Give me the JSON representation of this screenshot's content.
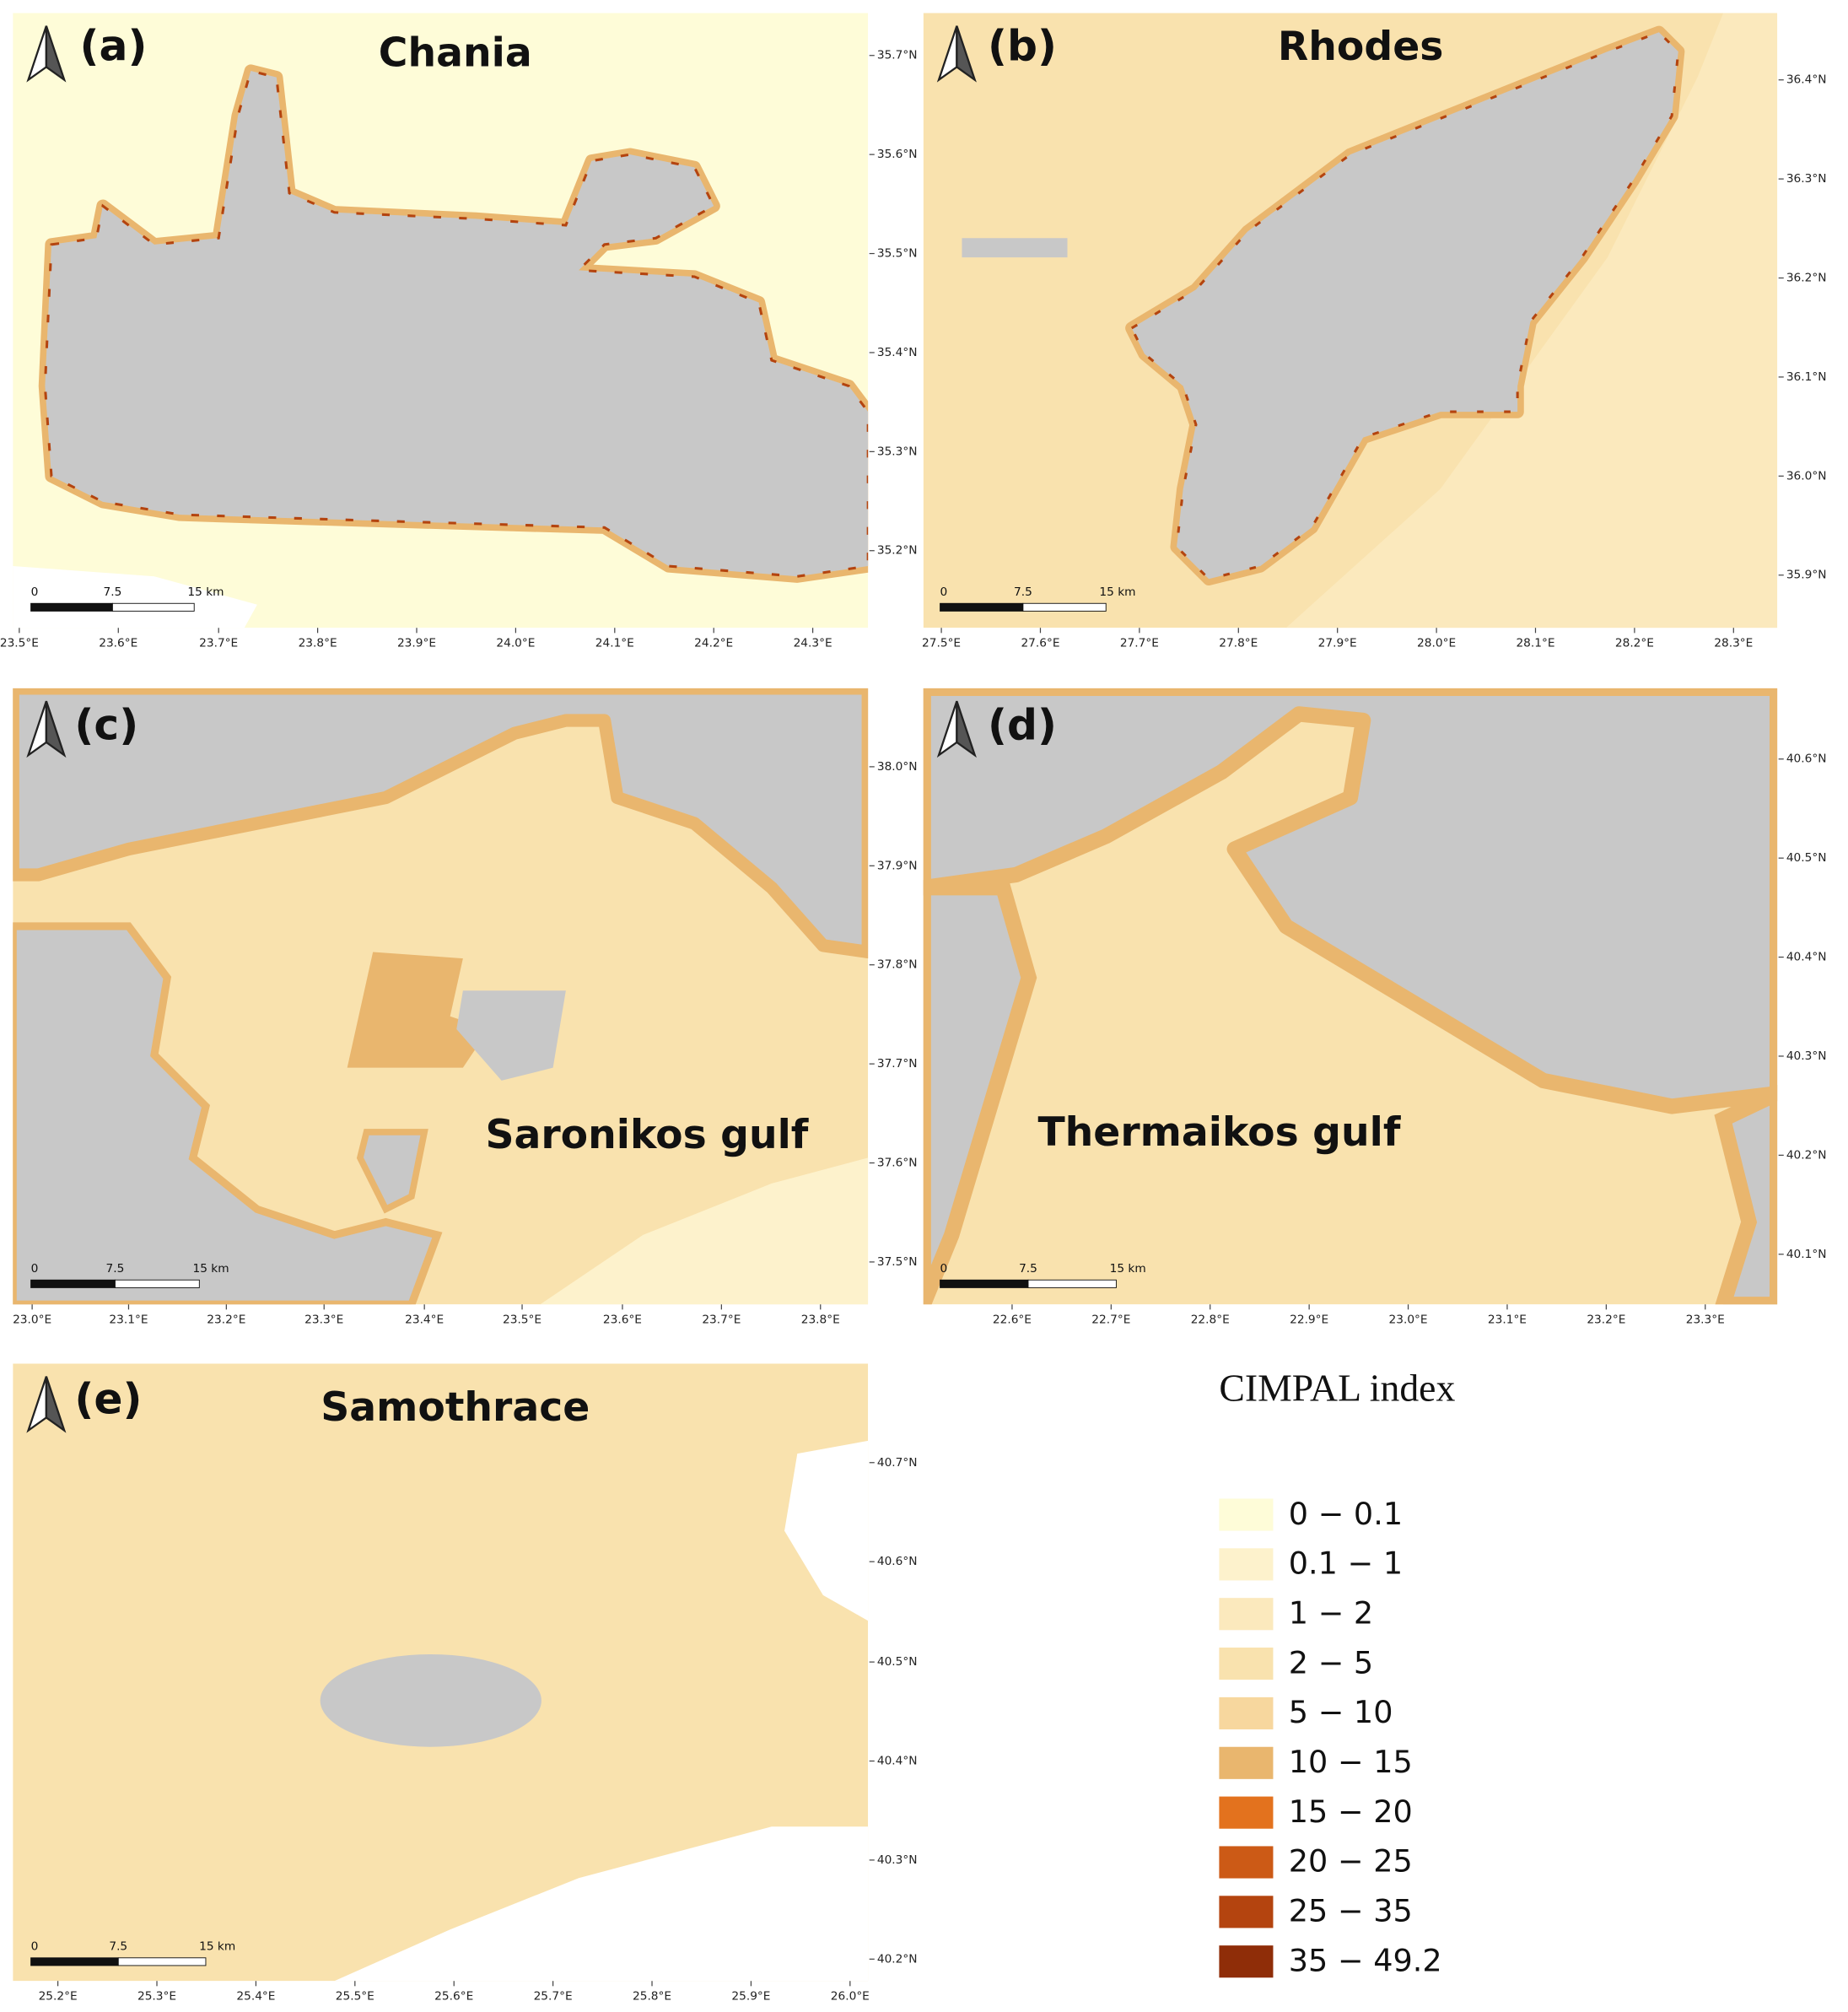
{
  "panels": [
    {
      "label": "(a)",
      "title": "Chania",
      "lon_ticks": [
        "23.5°E",
        "23.6°E",
        "23.7°E",
        "23.8°E",
        "23.9°E",
        "24.0°E",
        "24.1°E",
        "24.2°E",
        "24.3°E"
      ],
      "lat_ticks": [
        "35.7°N",
        "35.6°N",
        "35.5°N",
        "35.4°N",
        "35.3°N",
        "35.2°N"
      ],
      "scale_bar": [
        "0",
        "7.5",
        "15 km"
      ]
    },
    {
      "label": "(b)",
      "title": "Rhodes",
      "lon_ticks": [
        "27.5°E",
        "27.6°E",
        "27.7°E",
        "27.8°E",
        "27.9°E",
        "28.0°E",
        "28.1°E",
        "28.2°E",
        "28.3°E"
      ],
      "lat_ticks": [
        "36.4°N",
        "36.3°N",
        "36.2°N",
        "36.1°N",
        "36.0°N",
        "35.9°N"
      ],
      "scale_bar": [
        "0",
        "7.5",
        "15 km"
      ]
    },
    {
      "label": "(c)",
      "title": "Saronikos gulf",
      "lon_ticks": [
        "23.0°E",
        "23.1°E",
        "23.2°E",
        "23.3°E",
        "23.4°E",
        "23.5°E",
        "23.6°E",
        "23.7°E",
        "23.8°E"
      ],
      "lat_ticks": [
        "38.0°N",
        "37.9°N",
        "37.8°N",
        "37.7°N",
        "37.6°N",
        "37.5°N"
      ],
      "scale_bar": [
        "0",
        "7.5",
        "15 km"
      ]
    },
    {
      "label": "(d)",
      "title": "Thermaikos gulf",
      "lon_ticks": [
        "22.6°E",
        "22.7°E",
        "22.8°E",
        "22.9°E",
        "23.0°E",
        "23.1°E",
        "23.2°E",
        "23.3°E"
      ],
      "lat_ticks": [
        "40.6°N",
        "40.5°N",
        "40.4°N",
        "40.3°N",
        "40.2°N",
        "40.1°N"
      ],
      "scale_bar": [
        "0",
        "7.5",
        "15 km"
      ]
    },
    {
      "label": "(e)",
      "title": "Samothrace",
      "lon_ticks": [
        "25.2°E",
        "25.3°E",
        "25.4°E",
        "25.5°E",
        "25.6°E",
        "25.7°E",
        "25.8°E",
        "25.9°E",
        "26.0°E"
      ],
      "lat_ticks": [
        "40.7°N",
        "40.6°N",
        "40.5°N",
        "40.4°N",
        "40.3°N",
        "40.2°N"
      ],
      "scale_bar": [
        "0",
        "7.5",
        "15 km"
      ]
    }
  ],
  "legend": {
    "title": "CIMPAL index",
    "items": [
      {
        "label": "0 − 0.1",
        "color": "#fefcd8"
      },
      {
        "label": "0.1 − 1",
        "color": "#fdf2cc"
      },
      {
        "label": "1 − 2",
        "color": "#fbe9bd"
      },
      {
        "label": "2 − 5",
        "color": "#f9e2ae"
      },
      {
        "label": "5 − 10",
        "color": "#f7d79e"
      },
      {
        "label": "10 − 15",
        "color": "#e9b66e"
      },
      {
        "label": "15 − 20",
        "color": "#e3721e"
      },
      {
        "label": "20 − 25",
        "color": "#cc5a16"
      },
      {
        "label": "25 − 35",
        "color": "#b4440f"
      },
      {
        "label": "35 − 49.2",
        "color": "#8f2d08"
      }
    ]
  }
}
